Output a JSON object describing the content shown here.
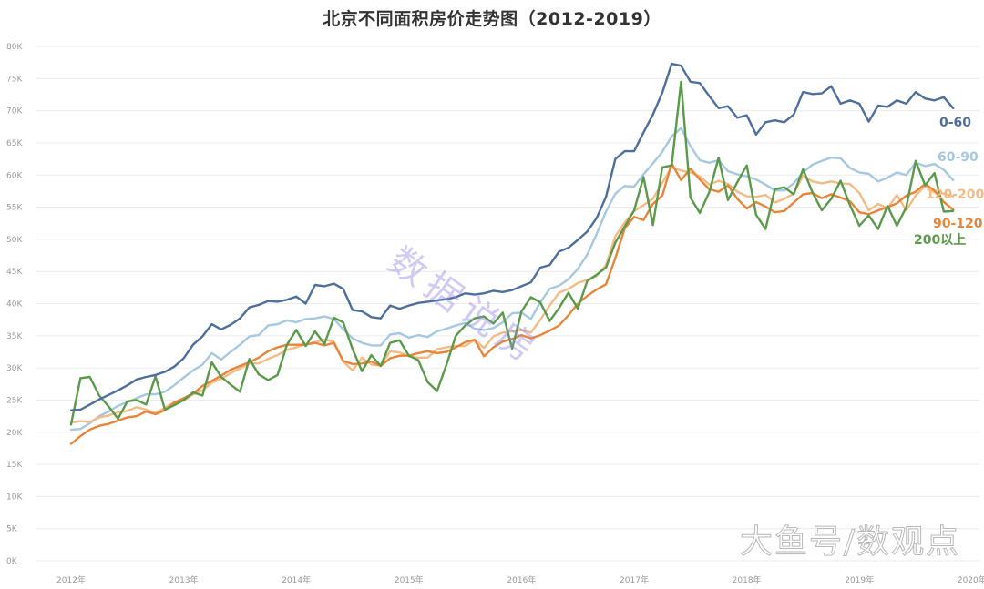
{
  "title": "北京不同面积房价走势图（2012-2019）",
  "watermarks": {
    "center": "数据说房",
    "corner": "大鱼号/数观点"
  },
  "chart_data": {
    "type": "line",
    "title": "北京不同面积房价走势图（2012-2019）",
    "xlabel": "",
    "ylabel": "",
    "ylim": [
      0,
      80000
    ],
    "y_ticks": [
      "0K",
      "5K",
      "10K",
      "15K",
      "20K",
      "25K",
      "30K",
      "35K",
      "40K",
      "45K",
      "50K",
      "55K",
      "60K",
      "65K",
      "70K",
      "75K",
      "80K"
    ],
    "x_ticks": [
      "2012年",
      "2013年",
      "2014年",
      "2015年",
      "2016年",
      "2017年",
      "2018年",
      "2019年",
      "2020年"
    ],
    "grid": true,
    "legend_position": "end-of-line labels (right)",
    "x_start": "2012-01",
    "x_step": "month",
    "series": [
      {
        "name": "0-60",
        "color": "#4e6f9c",
        "values": [
          23400,
          23500,
          24300,
          25100,
          25800,
          26500,
          27300,
          28200,
          28600,
          28900,
          29400,
          30200,
          31500,
          33600,
          34900,
          36800,
          36000,
          36700,
          37700,
          39400,
          39800,
          40400,
          40300,
          40600,
          41100,
          40000,
          42900,
          42700,
          43100,
          42300,
          39000,
          38800,
          37900,
          37700,
          39700,
          39200,
          39700,
          40100,
          40300,
          40500,
          40700,
          41000,
          41600,
          41400,
          41600,
          42000,
          41800,
          42100,
          42700,
          43300,
          45600,
          46000,
          48100,
          48700,
          49900,
          51200,
          53300,
          56600,
          62500,
          63700,
          63700,
          66600,
          69400,
          72800,
          77300,
          77000,
          74500,
          74300,
          72300,
          70400,
          70700,
          68900,
          69300,
          66300,
          68200,
          68500,
          68200,
          69400,
          72900,
          72600,
          72700,
          73800,
          71100,
          71600,
          71100,
          68300,
          70800,
          70600,
          71600,
          71100,
          72900,
          71900,
          71600,
          72100,
          70400
        ]
      },
      {
        "name": "60-90",
        "color": "#a6c8e0",
        "values": [
          20400,
          20500,
          21400,
          22500,
          23200,
          24100,
          24700,
          25300,
          25900,
          25900,
          26300,
          27300,
          28500,
          29600,
          30500,
          32300,
          31300,
          32500,
          33600,
          34900,
          35100,
          36600,
          36800,
          37400,
          37100,
          37600,
          37700,
          38000,
          37600,
          36000,
          34600,
          33900,
          33500,
          33500,
          35200,
          35400,
          34700,
          35100,
          34800,
          35700,
          36100,
          36600,
          37000,
          36100,
          35900,
          36200,
          37100,
          38500,
          38600,
          37600,
          40200,
          42300,
          42800,
          43800,
          45400,
          47600,
          50800,
          54300,
          57100,
          58300,
          58200,
          60100,
          61800,
          63600,
          66000,
          67300,
          64500,
          62300,
          61900,
          62300,
          60600,
          60100,
          59800,
          59300,
          58500,
          57600,
          57600,
          58700,
          60400,
          61600,
          62200,
          62700,
          62600,
          61100,
          60400,
          60200,
          59000,
          59600,
          60400,
          60000,
          61900,
          61400,
          61700,
          60800,
          59200
        ]
      },
      {
        "name": "120-200",
        "color": "#f4bb86",
        "values": [
          21500,
          21700,
          21600,
          22300,
          22600,
          23100,
          23300,
          23900,
          23500,
          23000,
          23800,
          24700,
          24900,
          25900,
          26500,
          27700,
          28300,
          29200,
          29900,
          30700,
          30700,
          31400,
          32000,
          32800,
          33200,
          33700,
          34000,
          34400,
          34100,
          31000,
          29600,
          31600,
          30500,
          30400,
          32600,
          32400,
          31800,
          31600,
          31600,
          32900,
          33200,
          33400,
          33400,
          34400,
          33100,
          34900,
          35500,
          35700,
          35900,
          35500,
          37500,
          39700,
          41700,
          42300,
          43200,
          43700,
          44300,
          46000,
          50500,
          52600,
          54400,
          55300,
          56300,
          58800,
          61200,
          60700,
          60400,
          59800,
          58500,
          59100,
          58600,
          57400,
          56700,
          56600,
          56900,
          55700,
          56300,
          57100,
          59900,
          59000,
          58700,
          59000,
          58700,
          58600,
          57200,
          54500,
          55500,
          54800,
          56900,
          54500,
          56800,
          58300,
          57300,
          57100,
          56700
        ]
      },
      {
        "name": "90-120",
        "color": "#e8853a",
        "values": [
          18200,
          19400,
          20400,
          21000,
          21300,
          21800,
          22300,
          22500,
          23200,
          22800,
          23400,
          24600,
          25300,
          26000,
          27200,
          28000,
          28800,
          29700,
          30300,
          30900,
          31600,
          32600,
          33200,
          33600,
          33600,
          33600,
          33900,
          33500,
          33900,
          31100,
          30600,
          30700,
          31000,
          30300,
          31500,
          31900,
          31900,
          32300,
          32600,
          32300,
          32500,
          33200,
          34000,
          34400,
          31800,
          33200,
          34100,
          34500,
          35100,
          34600,
          35100,
          35800,
          36600,
          38200,
          40000,
          41200,
          42200,
          43000,
          47100,
          51700,
          53500,
          53000,
          55500,
          56800,
          61800,
          59200,
          61000,
          59300,
          57800,
          57400,
          58400,
          56300,
          54800,
          55800,
          55100,
          54200,
          54400,
          55700,
          57000,
          57200,
          56400,
          57000,
          56500,
          55900,
          54200,
          53900,
          54500,
          55000,
          55600,
          56800,
          57400,
          58600,
          57600,
          55800,
          54600
        ]
      },
      {
        "name": "200以上",
        "color": "#5a9a4a",
        "values": [
          21200,
          28400,
          28600,
          25700,
          24000,
          22100,
          24800,
          25000,
          24300,
          28700,
          23500,
          24200,
          25000,
          26200,
          25700,
          30900,
          28600,
          27400,
          26300,
          31400,
          29000,
          28100,
          28900,
          33600,
          35900,
          33400,
          35700,
          33700,
          37800,
          37100,
          32900,
          29500,
          32000,
          30300,
          33900,
          34300,
          31900,
          31200,
          27800,
          26400,
          30500,
          35000,
          36600,
          37700,
          38000,
          36900,
          38600,
          33000,
          38800,
          41000,
          40200,
          37300,
          39300,
          41700,
          39200,
          43500,
          44500,
          45600,
          49500,
          52000,
          54500,
          59700,
          52200,
          61200,
          61500,
          74500,
          56500,
          54100,
          57300,
          62700,
          56100,
          58900,
          61500,
          53800,
          51600,
          57800,
          58100,
          57000,
          60900,
          57300,
          54500,
          56300,
          59100,
          55300,
          52100,
          53700,
          51600,
          55200,
          52100,
          55000,
          62200,
          58400,
          60300,
          54300,
          54400
        ]
      }
    ]
  }
}
